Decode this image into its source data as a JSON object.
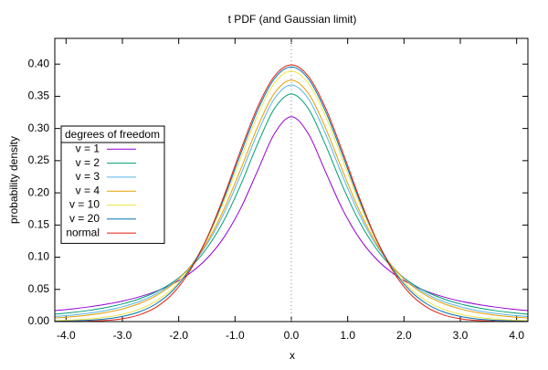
{
  "chart_data": {
    "type": "line",
    "title": "t PDF (and Gaussian limit)",
    "x_label": "x",
    "y_label": "probability density",
    "x": [
      -4.2,
      -3.9,
      -3.6,
      -3.3,
      -3.0,
      -2.7,
      -2.4,
      -2.1,
      -1.8,
      -1.5,
      -1.2,
      -0.9,
      -0.6,
      -0.3,
      0,
      0.3,
      0.6,
      0.9,
      1.2,
      1.5,
      1.8,
      2.1,
      2.4,
      2.7,
      3.0,
      3.3,
      3.6,
      3.9,
      4.2
    ],
    "xlim": [
      -4.2,
      4.2
    ],
    "xticks": [
      {
        "value": -4,
        "label": "-4.0"
      },
      {
        "value": -3,
        "label": "-3.0"
      },
      {
        "value": -2,
        "label": "-2.0"
      },
      {
        "value": -1,
        "label": "-1.0"
      },
      {
        "value": 0,
        "label": "0.0"
      },
      {
        "value": 1,
        "label": "1.0"
      },
      {
        "value": 2,
        "label": "2.0"
      },
      {
        "value": 3,
        "label": "3.0"
      },
      {
        "value": 4,
        "label": "4.0"
      }
    ],
    "ylim": [
      0,
      0.44
    ],
    "yticks": [
      {
        "value": 0,
        "label": "0.00"
      },
      0.05,
      {
        "value": 0.1,
        "label": "0.10"
      },
      0.15,
      {
        "value": 0.2,
        "label": "0.20"
      },
      0.25,
      {
        "value": 0.3,
        "label": "0.30"
      },
      0.35,
      {
        "value": 0.4,
        "label": "0.40"
      }
    ],
    "x_zero_axis": true,
    "legend_title": "degrees of freedom",
    "legend_position": "left",
    "series": [
      {
        "name": "v = 1",
        "color": "#9400d3",
        "values": [
          0.0171,
          0.0196,
          0.0228,
          0.0268,
          0.0318,
          0.0384,
          0.0471,
          0.0588,
          0.0751,
          0.0979,
          0.1305,
          0.1759,
          0.2341,
          0.292,
          0.3183,
          0.292,
          0.2341,
          0.1759,
          0.1305,
          0.0979,
          0.0751,
          0.0588,
          0.0471,
          0.0384,
          0.0318,
          0.0268,
          0.0228,
          0.0196,
          0.0171
        ]
      },
      {
        "name": "v = 2",
        "color": "#009e73",
        "values": [
          0.0115,
          0.014,
          0.0173,
          0.0216,
          0.0274,
          0.0353,
          0.0463,
          0.0616,
          0.0834,
          0.1141,
          0.1567,
          0.2123,
          0.2758,
          0.331,
          0.3536,
          0.331,
          0.2758,
          0.2123,
          0.1567,
          0.1141,
          0.0834,
          0.0616,
          0.0463,
          0.0353,
          0.0274,
          0.0216,
          0.0173,
          0.014,
          0.0115
        ]
      },
      {
        "name": "v = 3",
        "color": "#56b4e9",
        "values": [
          0.0078,
          0.01,
          0.013,
          0.0171,
          0.023,
          0.0312,
          0.0431,
          0.0602,
          0.085,
          0.12,
          0.1678,
          0.2279,
          0.293,
          0.3465,
          0.3676,
          0.3465,
          0.293,
          0.2279,
          0.1678,
          0.12,
          0.085,
          0.0602,
          0.0431,
          0.0312,
          0.023,
          0.0171,
          0.013,
          0.01,
          0.0078
        ]
      },
      {
        "name": "v = 4",
        "color": "#e69f00",
        "values": [
          0.0055,
          0.0074,
          0.0101,
          0.014,
          0.0197,
          0.028,
          0.0403,
          0.0585,
          0.0851,
          0.1229,
          0.1739,
          0.2365,
          0.3023,
          0.3547,
          0.375,
          0.3547,
          0.3023,
          0.2365,
          0.1739,
          0.1229,
          0.0851,
          0.0585,
          0.0403,
          0.028,
          0.0197,
          0.014,
          0.0101,
          0.0074,
          0.0055
        ]
      },
      {
        "name": "v = 10",
        "color": "#f0e442",
        "values": [
          0.0015,
          0.0024,
          0.004,
          0.0068,
          0.0114,
          0.0192,
          0.0319,
          0.0522,
          0.0831,
          0.1274,
          0.1857,
          0.2535,
          0.3203,
          0.3704,
          0.3891,
          0.3704,
          0.3203,
          0.2535,
          0.1857,
          0.1274,
          0.0831,
          0.0522,
          0.0319,
          0.0192,
          0.0114,
          0.0068,
          0.004,
          0.0024,
          0.0015
        ]
      },
      {
        "name": "v = 20",
        "color": "#0072b2",
        "values": [
          0.0005,
          0.001,
          0.0021,
          0.0041,
          0.008,
          0.0151,
          0.0277,
          0.0488,
          0.0818,
          0.1292,
          0.1906,
          0.2608,
          0.328,
          0.3774,
          0.3956,
          0.3774,
          0.328,
          0.2608,
          0.1906,
          0.1292,
          0.0818,
          0.0488,
          0.0277,
          0.0151,
          0.008,
          0.0041,
          0.0021,
          0.001,
          0.0005
        ]
      },
      {
        "name": "normal",
        "color": "#e51e10",
        "values": [
          0.0001,
          0.0002,
          0.0006,
          0.0017,
          0.0044,
          0.0104,
          0.0224,
          0.044,
          0.079,
          0.1295,
          0.1942,
          0.2661,
          0.3332,
          0.3814,
          0.3989,
          0.3814,
          0.3332,
          0.2661,
          0.1942,
          0.1295,
          0.079,
          0.044,
          0.0224,
          0.0104,
          0.0044,
          0.0017,
          0.0006,
          0.0002,
          0.0001
        ]
      }
    ]
  }
}
